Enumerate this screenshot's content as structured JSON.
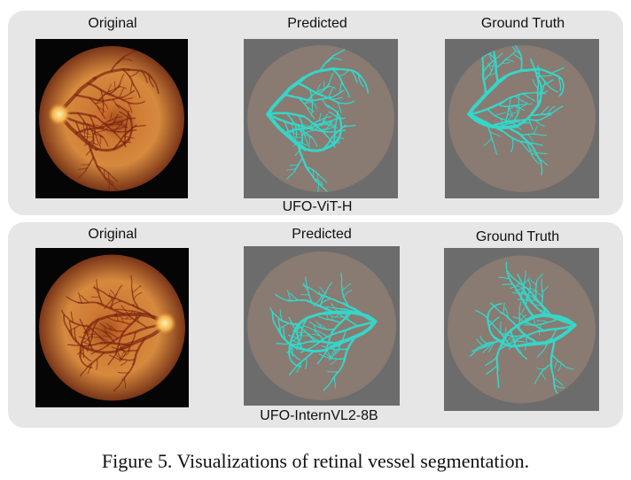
{
  "panels": [
    {
      "original": "Original",
      "predicted": "Predicted",
      "ground_truth": "Ground Truth",
      "model": "UFO-ViT-H"
    },
    {
      "original": "Original",
      "predicted": "Predicted",
      "ground_truth": "Ground Truth",
      "model": "UFO-InternVL2-8B"
    }
  ],
  "caption": "Figure 5. Visualizations of retinal vessel segmentation."
}
